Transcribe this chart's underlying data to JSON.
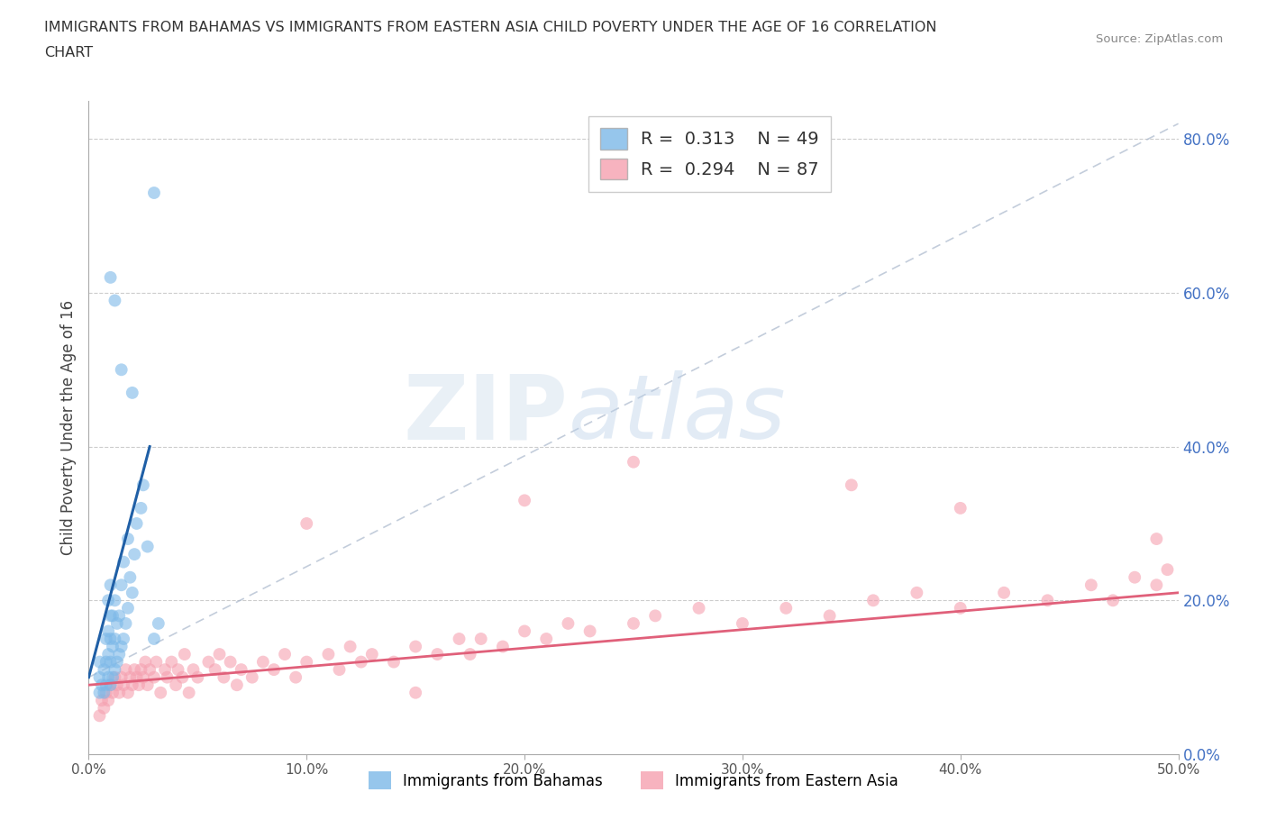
{
  "title_line1": "IMMIGRANTS FROM BAHAMAS VS IMMIGRANTS FROM EASTERN ASIA CHILD POVERTY UNDER THE AGE OF 16 CORRELATION",
  "title_line2": "CHART",
  "source": "Source: ZipAtlas.com",
  "ylabel": "Child Poverty Under the Age of 16",
  "xlim": [
    0.0,
    0.5
  ],
  "ylim": [
    0.0,
    0.85
  ],
  "xticks": [
    0.0,
    0.1,
    0.2,
    0.3,
    0.4,
    0.5
  ],
  "xtick_labels": [
    "0.0%",
    "10.0%",
    "20.0%",
    "30.0%",
    "40.0%",
    "50.0%"
  ],
  "ytick_positions": [
    0.0,
    0.2,
    0.4,
    0.6,
    0.8
  ],
  "ytick_labels": [
    "0.0%",
    "20.0%",
    "40.0%",
    "60.0%",
    "80.0%"
  ],
  "blue_color": "#7cb8e8",
  "pink_color": "#f5a0b0",
  "blue_line_color": "#1f5fa6",
  "pink_line_color": "#e0607a",
  "dashed_line_color": "#aab8cc",
  "R_blue": 0.313,
  "N_blue": 49,
  "R_pink": 0.294,
  "N_pink": 87,
  "legend_label_blue": "Immigrants from Bahamas",
  "legend_label_pink": "Immigrants from Eastern Asia",
  "watermark_zip": "ZIP",
  "watermark_atlas": "atlas",
  "blue_scatter_x": [
    0.005,
    0.005,
    0.005,
    0.006,
    0.007,
    0.007,
    0.008,
    0.008,
    0.008,
    0.009,
    0.009,
    0.009,
    0.009,
    0.01,
    0.01,
    0.01,
    0.01,
    0.01,
    0.011,
    0.011,
    0.011,
    0.012,
    0.012,
    0.012,
    0.013,
    0.013,
    0.014,
    0.014,
    0.015,
    0.015,
    0.016,
    0.016,
    0.017,
    0.018,
    0.018,
    0.019,
    0.02,
    0.021,
    0.022,
    0.024,
    0.025,
    0.027,
    0.03,
    0.032,
    0.01,
    0.012,
    0.015,
    0.02,
    0.03
  ],
  "blue_scatter_y": [
    0.08,
    0.1,
    0.12,
    0.09,
    0.08,
    0.11,
    0.09,
    0.12,
    0.15,
    0.1,
    0.13,
    0.16,
    0.2,
    0.09,
    0.12,
    0.15,
    0.18,
    0.22,
    0.1,
    0.14,
    0.18,
    0.11,
    0.15,
    0.2,
    0.12,
    0.17,
    0.13,
    0.18,
    0.14,
    0.22,
    0.15,
    0.25,
    0.17,
    0.19,
    0.28,
    0.23,
    0.21,
    0.26,
    0.3,
    0.32,
    0.35,
    0.27,
    0.15,
    0.17,
    0.62,
    0.59,
    0.5,
    0.47,
    0.73
  ],
  "pink_scatter_x": [
    0.005,
    0.006,
    0.007,
    0.008,
    0.009,
    0.01,
    0.011,
    0.012,
    0.013,
    0.014,
    0.015,
    0.016,
    0.017,
    0.018,
    0.019,
    0.02,
    0.021,
    0.022,
    0.023,
    0.024,
    0.025,
    0.026,
    0.027,
    0.028,
    0.03,
    0.031,
    0.033,
    0.035,
    0.036,
    0.038,
    0.04,
    0.041,
    0.043,
    0.044,
    0.046,
    0.048,
    0.05,
    0.055,
    0.058,
    0.06,
    0.062,
    0.065,
    0.068,
    0.07,
    0.075,
    0.08,
    0.085,
    0.09,
    0.095,
    0.1,
    0.11,
    0.115,
    0.12,
    0.125,
    0.13,
    0.14,
    0.15,
    0.16,
    0.17,
    0.175,
    0.18,
    0.19,
    0.2,
    0.21,
    0.22,
    0.23,
    0.25,
    0.26,
    0.28,
    0.3,
    0.32,
    0.34,
    0.36,
    0.38,
    0.4,
    0.42,
    0.44,
    0.46,
    0.47,
    0.48,
    0.49,
    0.495,
    0.1,
    0.2,
    0.35,
    0.4,
    0.49,
    0.25,
    0.15
  ],
  "pink_scatter_y": [
    0.05,
    0.07,
    0.06,
    0.08,
    0.07,
    0.09,
    0.08,
    0.1,
    0.09,
    0.08,
    0.1,
    0.09,
    0.11,
    0.08,
    0.1,
    0.09,
    0.11,
    0.1,
    0.09,
    0.11,
    0.1,
    0.12,
    0.09,
    0.11,
    0.1,
    0.12,
    0.08,
    0.11,
    0.1,
    0.12,
    0.09,
    0.11,
    0.1,
    0.13,
    0.08,
    0.11,
    0.1,
    0.12,
    0.11,
    0.13,
    0.1,
    0.12,
    0.09,
    0.11,
    0.1,
    0.12,
    0.11,
    0.13,
    0.1,
    0.12,
    0.13,
    0.11,
    0.14,
    0.12,
    0.13,
    0.12,
    0.14,
    0.13,
    0.15,
    0.13,
    0.15,
    0.14,
    0.16,
    0.15,
    0.17,
    0.16,
    0.17,
    0.18,
    0.19,
    0.17,
    0.19,
    0.18,
    0.2,
    0.21,
    0.19,
    0.21,
    0.2,
    0.22,
    0.2,
    0.23,
    0.22,
    0.24,
    0.3,
    0.33,
    0.35,
    0.32,
    0.28,
    0.38,
    0.08
  ],
  "blue_line_x": [
    0.0,
    0.028
  ],
  "blue_line_y": [
    0.1,
    0.4
  ],
  "pink_line_x": [
    0.0,
    0.5
  ],
  "pink_line_y": [
    0.09,
    0.21
  ],
  "dash_line_x": [
    0.0,
    0.5
  ],
  "dash_line_y": [
    0.1,
    0.82
  ]
}
